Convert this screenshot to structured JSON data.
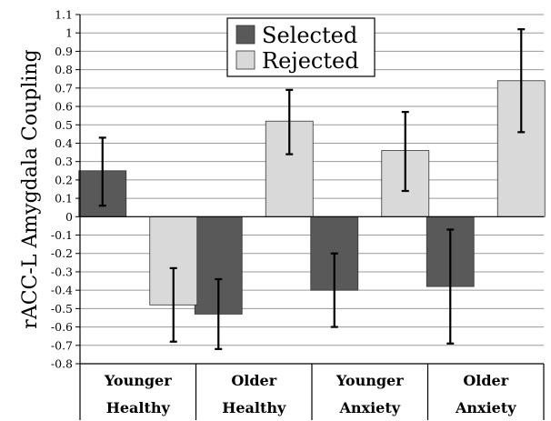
{
  "chart_data": {
    "type": "bar",
    "ylabel": "rACC-L Amygdala Coupling",
    "ylim": [
      -0.8,
      1.1
    ],
    "ytick_step": 0.1,
    "grid": true,
    "legend_placement": "top-center",
    "categories": [
      [
        "Younger",
        "Healthy"
      ],
      [
        "Older",
        "Healthy"
      ],
      [
        "Younger",
        "Anxiety"
      ],
      [
        "Older",
        "Anxiety"
      ]
    ],
    "series": [
      {
        "name": "Selected",
        "color": "#595959",
        "values": [
          0.25,
          -0.53,
          -0.4,
          -0.38
        ],
        "err_low": [
          0.06,
          -0.72,
          -0.6,
          -0.69
        ],
        "err_high": [
          0.43,
          -0.34,
          -0.2,
          -0.07
        ]
      },
      {
        "name": "Rejected",
        "color": "#d9d9d9",
        "values": [
          -0.48,
          0.52,
          0.36,
          0.74
        ],
        "err_low": [
          -0.68,
          0.34,
          0.14,
          0.46
        ],
        "err_high": [
          -0.28,
          0.69,
          0.57,
          1.02
        ]
      }
    ]
  }
}
